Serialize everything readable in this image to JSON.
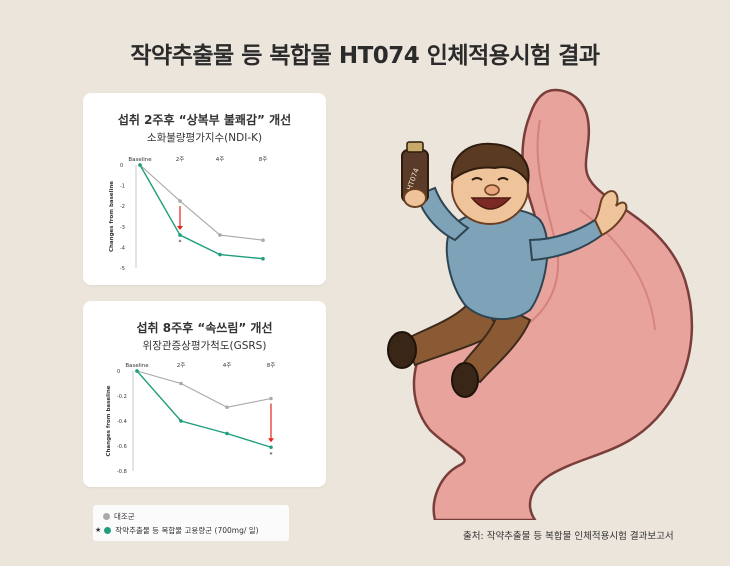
{
  "title": "작약추출물 등 복합물 HT074 인체적용시험 결과",
  "source": "출처:  작약추출물 등 복합물 인체적용시험 결과보고서",
  "bottle_label": "HT074",
  "legend": {
    "control": "대조군",
    "treatment": "작약추출물 등 복합물 고용량군 (700mg/ 일)",
    "star": "★"
  },
  "colors": {
    "control": "#a9a9a9",
    "treatment": "#1f9e7d",
    "arrow": "#e0261c",
    "stomach": "#e9a39d"
  },
  "chart_data": [
    {
      "type": "line",
      "title": "섭취 2주후 “상복부 불쾌감” 개선",
      "subtitle": "소화불량평가지수(NDI-K)",
      "ylabel": "Changes from baseline",
      "categories": [
        "Baseline",
        "2주",
        "4주",
        "8주"
      ],
      "ylim": [
        -5,
        0
      ],
      "yticks": [
        "0",
        "-1",
        "-2",
        "-3",
        "-4",
        "-5"
      ],
      "ytick_values": [
        0,
        -1,
        -2,
        -3,
        -4,
        -5
      ],
      "series": [
        {
          "name": "대조군",
          "values": [
            0,
            -1.75,
            -3.4,
            -3.65
          ]
        },
        {
          "name": "작약추출물 등 복합물 고용량군 (700mg/ 일)",
          "values": [
            0,
            -3.4,
            -4.35,
            -4.55
          ]
        }
      ],
      "significance": {
        "category": "2주",
        "marker": "*"
      }
    },
    {
      "type": "line",
      "title": "섭취 8주후 “속쓰림” 개선",
      "subtitle": "위장관증상평가척도(GSRS)",
      "ylabel": "Changes from baseline",
      "categories": [
        "Baseline",
        "2주",
        "4주",
        "8주"
      ],
      "ylim": [
        -0.8,
        0
      ],
      "yticks": [
        "0",
        "-0.2",
        "-0.4",
        "-0.6",
        "-0.8"
      ],
      "ytick_values": [
        0,
        -0.2,
        -0.4,
        -0.6,
        -0.8
      ],
      "series": [
        {
          "name": "대조군",
          "values": [
            0,
            -0.1,
            -0.29,
            -0.22
          ]
        },
        {
          "name": "작약추출물 등 복합물 고용량군 (700mg/ 일)",
          "values": [
            0,
            -0.4,
            -0.5,
            -0.61
          ]
        }
      ],
      "significance": {
        "category": "8주",
        "marker": "*"
      }
    }
  ]
}
